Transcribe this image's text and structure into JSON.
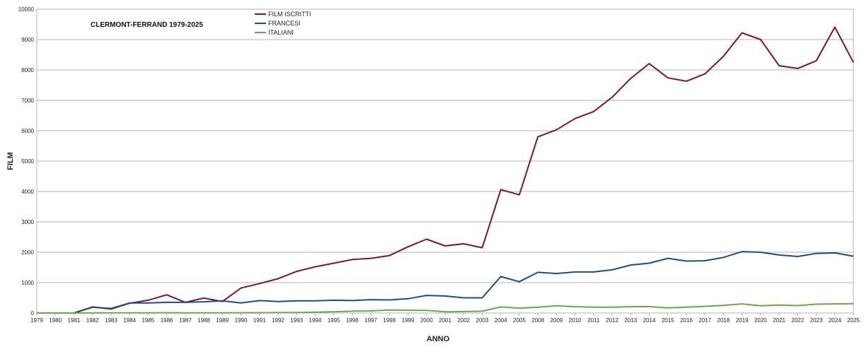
{
  "chart_data": {
    "type": "line",
    "title": "CLERMONT-FERRAND 1979-2025",
    "xlabel": "ANNO",
    "ylabel": "FILM",
    "ylim": [
      0,
      10000
    ],
    "yticks": [
      0,
      1000,
      2000,
      3000,
      4000,
      5000,
      6000,
      7000,
      8000,
      9000,
      10000
    ],
    "grid": "horizontal",
    "legend_position": "top",
    "categories": [
      "1979",
      "1980",
      "1981",
      "1982",
      "1983",
      "1984",
      "1985",
      "1986",
      "1987",
      "1988",
      "1989",
      "1990",
      "1991",
      "1992",
      "1993",
      "1994",
      "1995",
      "1996",
      "1997",
      "1998",
      "1999",
      "2000",
      "2001",
      "2002",
      "2003",
      "2004",
      "2005",
      "2008",
      "2009",
      "2010",
      "2011",
      "2012",
      "2013",
      "2014",
      "2015",
      "2016",
      "2017",
      "2018",
      "2019",
      "2020",
      "2021",
      "2022",
      "2023",
      "2024",
      "2025"
    ],
    "series": [
      {
        "name": "FILM ISCRITTI",
        "color": "#7b1530",
        "values": [
          0,
          0,
          0,
          200,
          130,
          320,
          420,
          600,
          350,
          490,
          380,
          820,
          970,
          1130,
          1370,
          1520,
          1640,
          1760,
          1800,
          1890,
          2180,
          2430,
          2210,
          2280,
          2150,
          4060,
          3890,
          5800,
          6030,
          6400,
          6630,
          7100,
          7720,
          8210,
          7740,
          7630,
          7870,
          8450,
          9220,
          9000,
          8140,
          8050,
          8300,
          9410,
          8250
        ]
      },
      {
        "name": "FRANCESI",
        "color": "#1f4e79",
        "values": [
          0,
          0,
          0,
          190,
          150,
          330,
          330,
          350,
          350,
          370,
          400,
          330,
          410,
          380,
          400,
          400,
          420,
          410,
          440,
          430,
          470,
          580,
          560,
          500,
          500,
          1200,
          1030,
          1340,
          1300,
          1350,
          1350,
          1420,
          1580,
          1640,
          1800,
          1710,
          1720,
          1830,
          2020,
          2000,
          1910,
          1860,
          1960,
          1980,
          1870
        ]
      },
      {
        "name": "ITALIANI",
        "color": "#6aa84f",
        "values": [
          0,
          0,
          0,
          5,
          5,
          5,
          5,
          10,
          5,
          5,
          5,
          10,
          10,
          15,
          15,
          30,
          40,
          60,
          70,
          100,
          90,
          85,
          40,
          50,
          60,
          200,
          160,
          190,
          240,
          210,
          190,
          190,
          210,
          210,
          170,
          190,
          220,
          250,
          300,
          240,
          260,
          245,
          290,
          300,
          310
        ]
      }
    ]
  }
}
